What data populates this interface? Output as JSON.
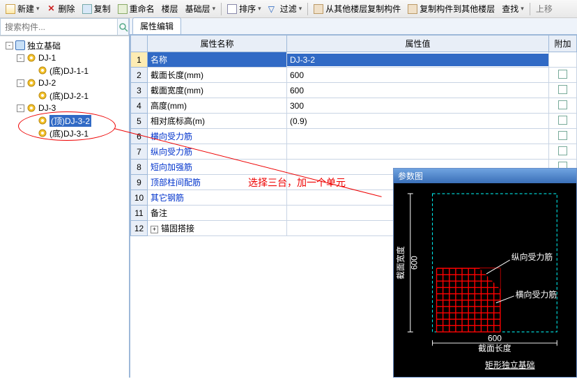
{
  "toolbar": {
    "new": "新建",
    "delete": "删除",
    "copy": "复制",
    "rename": "重命名",
    "floor": "楼层",
    "baseFloor": "基础层",
    "sort": "排序",
    "filter": "过滤",
    "copyFromFloor": "从其他楼层复制构件",
    "copyToFloor": "复制构件到其他楼层",
    "find": "查找",
    "moveUp": "上移"
  },
  "search": {
    "placeholder": "搜索构件..."
  },
  "tree": {
    "root": "独立基础",
    "items": [
      {
        "label": "DJ-1",
        "level": 2,
        "exp": "-"
      },
      {
        "label": "(底)DJ-1-1",
        "level": 3
      },
      {
        "label": "DJ-2",
        "level": 2,
        "exp": "-"
      },
      {
        "label": "(底)DJ-2-1",
        "level": 3
      },
      {
        "label": "DJ-3",
        "level": 2,
        "exp": "-"
      },
      {
        "label": "(顶)DJ-3-2",
        "level": 3,
        "selected": true
      },
      {
        "label": "(底)DJ-3-1",
        "level": 3
      }
    ]
  },
  "tab": {
    "propEdit": "属性编辑"
  },
  "grid": {
    "headers": {
      "name": "属性名称",
      "value": "属性值",
      "extra": "附加"
    },
    "rows": [
      {
        "n": "1",
        "name": "名称",
        "value": "DJ-3-2",
        "sel": true,
        "chk": false
      },
      {
        "n": "2",
        "name": "截面长度(mm)",
        "value": "600",
        "chk": true
      },
      {
        "n": "3",
        "name": "截面宽度(mm)",
        "value": "600",
        "chk": true
      },
      {
        "n": "4",
        "name": "高度(mm)",
        "value": "300",
        "chk": true
      },
      {
        "n": "5",
        "name": "相对底标高(m)",
        "value": "(0.9)",
        "chk": true
      },
      {
        "n": "6",
        "name": "横向受力筋",
        "value": "",
        "link": true,
        "chk": true
      },
      {
        "n": "7",
        "name": "纵向受力筋",
        "value": "",
        "link": true,
        "chk": true
      },
      {
        "n": "8",
        "name": "短向加强筋",
        "value": "",
        "link": true,
        "chk": true
      },
      {
        "n": "9",
        "name": "顶部柱间配筋",
        "value": "",
        "link": true,
        "chk": true
      },
      {
        "n": "10",
        "name": "其它钢筋",
        "value": "",
        "link": true,
        "chk": true
      },
      {
        "n": "11",
        "name": "备注",
        "value": "",
        "chk": true
      },
      {
        "n": "12",
        "name": "锚固搭接",
        "value": "",
        "expander": "+",
        "chk": false
      }
    ]
  },
  "annotation": {
    "text": "选择三台，加一个单元"
  },
  "diagram": {
    "title": "参数图",
    "bottomTitle": "矩形独立基础",
    "xLabel": "截面长度",
    "xValue": "600",
    "yLabel": "截面宽度",
    "yValue": "600",
    "rebarV": "纵向受力筋",
    "rebarH": "横向受力筋",
    "colors": {
      "bg": "#000000",
      "axis": "#00ffff",
      "dim": "#ffffff",
      "rebar": "#ff0000",
      "text": "#ffffff",
      "title": "#ffffff"
    },
    "gridCount": 10
  }
}
